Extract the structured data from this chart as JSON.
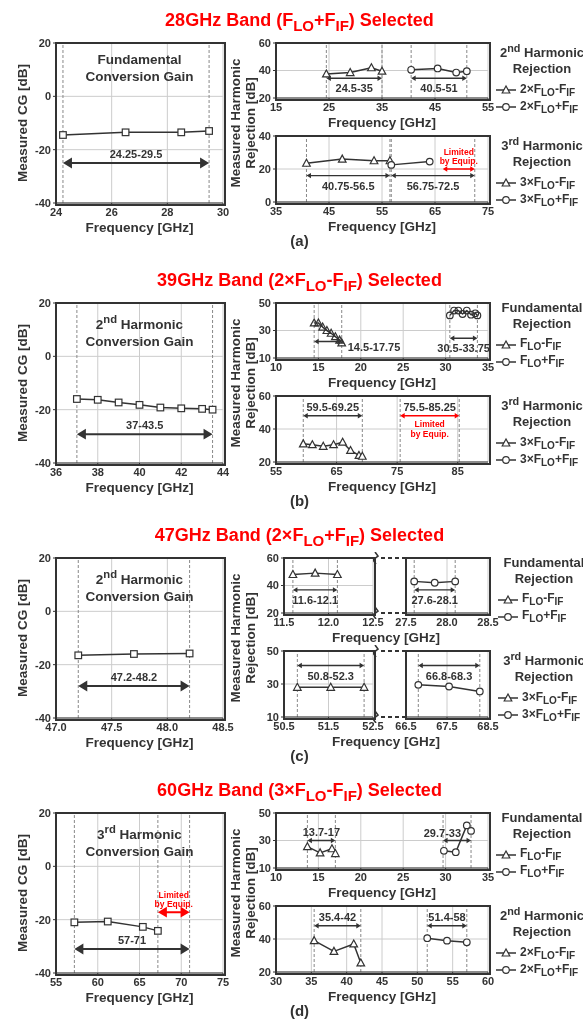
{
  "chart_data": [
    {
      "type": "line",
      "title": "28GHz Band (F$_{LO}$+F$_{IF}$) Selected",
      "xlabel": "Frequency [GHz]",
      "ylabel": "Measured CG [dB]",
      "xlim": [
        24,
        30
      ],
      "xticks": [
        24,
        26,
        28,
        30
      ],
      "ylim": [
        -40,
        20
      ],
      "yticks": [
        -40,
        -20,
        0,
        20
      ],
      "grid": true,
      "annotations": [
        "Fundamental Conversion Gain",
        "(a)",
        "24.25-29.5"
      ],
      "series": [
        {
          "x": [
            24.25,
            26.5,
            28.5,
            29.5
          ],
          "values": [
            -14.5,
            -13.5,
            -13.5,
            -13
          ],
          "color": "#333333",
          "marker": "square"
        }
      ],
      "ref_lines": [
        {
          "axis": "x",
          "value": 24.25,
          "line_style": "dashed",
          "color": "#888888"
        },
        {
          "axis": "x",
          "value": 29.5,
          "line_style": "dashed",
          "color": "#888888"
        }
      ]
    },
    {
      "type": "line",
      "xlabel": "Frequency [GHz]",
      "ylabel": "Measured Harmonic Rejection [dB]",
      "legend_title": "2$^{nd}$ Harmonic Rejection",
      "legend": "right",
      "xlim": [
        15,
        55
      ],
      "xticks": [
        15,
        25,
        35,
        45,
        55
      ],
      "ylim": [
        20,
        60
      ],
      "yticks": [
        20,
        40,
        60
      ],
      "grid": true,
      "annotations": [
        "24.5-35",
        "40.5-51"
      ],
      "series": [
        {
          "name": "2×F$_{LO}$-F$_{IF}$",
          "x": [
            24.5,
            29,
            33,
            35
          ],
          "values": [
            37.5,
            38.5,
            42,
            39.5
          ],
          "color": "#333333",
          "marker": "triangle"
        },
        {
          "name": "2×F$_{LO}$+F$_{IF}$",
          "x": [
            40.5,
            45.5,
            49,
            51
          ],
          "values": [
            40.5,
            41.5,
            38.5,
            39.5
          ],
          "color": "#333333",
          "marker": "circle"
        }
      ],
      "ref_lines": [
        {
          "axis": "x",
          "value": 24.5,
          "line_style": "dashed",
          "color": "#888888"
        },
        {
          "axis": "x",
          "value": 35,
          "line_style": "dashed",
          "color": "#888888"
        },
        {
          "axis": "x",
          "value": 40.5,
          "line_style": "dashed",
          "color": "#888888"
        },
        {
          "axis": "x",
          "value": 51,
          "line_style": "dashed",
          "color": "#888888"
        }
      ]
    },
    {
      "type": "line",
      "xlabel": "Frequency [GHz]",
      "legend_title": "3$^{rd}$ Harmonic Rejection",
      "legend": "right",
      "xlim": [
        35,
        75
      ],
      "xticks": [
        35,
        45,
        55,
        65,
        75
      ],
      "ylim": [
        0,
        40
      ],
      "yticks": [
        0,
        20,
        40
      ],
      "grid": true,
      "annotations": [
        "40.75-56.5",
        "56.75-72.5",
        {
          "text": "Limited by Equip.",
          "x": 72.5,
          "y": 20
        }
      ],
      "series": [
        {
          "name": "3×F$_{LO}$-F$_{IF}$",
          "x": [
            40.75,
            47.5,
            53.5,
            56.5
          ],
          "values": [
            23.5,
            26,
            25,
            25
          ],
          "color": "#333333",
          "marker": "triangle"
        },
        {
          "name": "3×F$_{LO}$+F$_{IF}$",
          "x": [
            56.75,
            64
          ],
          "values": [
            22.5,
            24.5
          ],
          "color": "#333333",
          "marker": "circle"
        }
      ],
      "ref_lines": [
        {
          "axis": "x",
          "value": 40.75,
          "line_style": "dashed",
          "color": "#888888"
        },
        {
          "axis": "x",
          "value": 56.5,
          "line_style": "dashed",
          "color": "#888888"
        },
        {
          "axis": "x",
          "value": 56.75,
          "line_style": "dashed",
          "color": "#888888"
        },
        {
          "axis": "x",
          "value": 72.5,
          "line_style": "dashed",
          "color": "#888888"
        }
      ]
    },
    {
      "type": "line",
      "title": "39GHz Band (2×F$_{LO}$-F$_{IF}$) Selected",
      "xlabel": "Frequency [GHz]",
      "ylabel": "Measured CG [dB]",
      "xlim": [
        36,
        44
      ],
      "xticks": [
        36,
        38,
        40,
        42,
        44
      ],
      "ylim": [
        -40,
        20
      ],
      "yticks": [
        -40,
        -20,
        0,
        20
      ],
      "grid": true,
      "annotations": [
        "2$^{nd}$ Harmonic Conversion Gain",
        "(b)",
        "37-43.5"
      ],
      "series": [
        {
          "x": [
            37,
            38,
            39,
            40,
            41,
            42,
            43,
            43.5
          ],
          "values": [
            -16,
            -16.3,
            -17.3,
            -18.2,
            -19.2,
            -19.5,
            -19.7,
            -20
          ],
          "color": "#333333",
          "marker": "square"
        }
      ],
      "ref_lines": [
        {
          "axis": "x",
          "value": 37,
          "line_style": "dashed",
          "color": "#888888"
        },
        {
          "axis": "x",
          "value": 43.5,
          "line_style": "dashed",
          "color": "#888888"
        }
      ]
    },
    {
      "type": "line",
      "xlabel": "Frequency [GHz]",
      "ylabel": "Measured Harmonic Rejection [dB]",
      "legend_title": "Fundamental Rejection",
      "legend": "right",
      "xlim": [
        10,
        35
      ],
      "xticks": [
        10,
        15,
        20,
        25,
        30,
        35
      ],
      "ylim": [
        10,
        50
      ],
      "yticks": [
        10,
        30,
        50
      ],
      "grid": true,
      "annotations": [
        "14.5-17.75",
        "30.5-33.75"
      ],
      "series": [
        {
          "name": "F$_{LO}$-F$_{IF}$",
          "x": [
            14.5,
            15,
            15.5,
            16,
            16.5,
            17,
            17.5,
            17.75
          ],
          "values": [
            35.5,
            35.5,
            32.5,
            30,
            28,
            25.5,
            23,
            21
          ],
          "color": "#333333",
          "marker": "triangle"
        },
        {
          "name": "F$_{LO}$+F$_{IF}$",
          "x": [
            30.5,
            31,
            31.5,
            32,
            32.5,
            33,
            33.5,
            33.75
          ],
          "values": [
            41,
            44.5,
            44.5,
            42,
            44.5,
            41.5,
            42.5,
            41
          ],
          "color": "#333333",
          "marker": "circle"
        }
      ],
      "ref_lines": [
        {
          "axis": "x",
          "value": 14.5,
          "line_style": "dashed",
          "color": "#888888"
        },
        {
          "axis": "x",
          "value": 17.75,
          "line_style": "dashed",
          "color": "#888888"
        },
        {
          "axis": "x",
          "value": 30.5,
          "line_style": "dashed",
          "color": "#888888"
        },
        {
          "axis": "x",
          "value": 33.75,
          "line_style": "dashed",
          "color": "#888888"
        }
      ]
    },
    {
      "type": "line",
      "xlabel": "Frequency [GHz]",
      "legend_title": "3$^{rd}$ Harmonic Rejection",
      "legend": "right",
      "xlim": [
        55,
        90
      ],
      "xticks": [
        55,
        65,
        75,
        85
      ],
      "ylim": [
        20,
        60
      ],
      "yticks": [
        20,
        40,
        60
      ],
      "grid": true,
      "annotations": [
        "59.5-69.25",
        "75.5-85.25",
        "Limited by Equip."
      ],
      "series": [
        {
          "name": "3×F$_{LO}$-F$_{IF}$",
          "x": [
            59.5,
            61,
            62.8,
            64.5,
            66,
            67.3,
            68.7,
            69.25
          ],
          "values": [
            31,
            30.5,
            29.5,
            30.5,
            32,
            27,
            24,
            23.5
          ],
          "color": "#333333",
          "marker": "triangle"
        },
        {
          "name": "3×F$_{LO}$+F$_{IF}$",
          "color": "#333333",
          "marker": "circle"
        }
      ],
      "ref_lines": [
        {
          "axis": "x",
          "value": 59.5,
          "line_style": "dashed",
          "color": "#888888"
        },
        {
          "axis": "x",
          "value": 69.25,
          "line_style": "dashed",
          "color": "#888888"
        },
        {
          "axis": "x",
          "value": 75.5,
          "line_style": "dashed",
          "color": "#888888"
        },
        {
          "axis": "x",
          "value": 85.25,
          "line_style": "dashed",
          "color": "#888888"
        }
      ]
    },
    {
      "type": "line",
      "title": "47GHz Band (2×F$_{LO}$+F$_{IF}$) Selected",
      "xlabel": "Frequency [GHz]",
      "ylabel": "Measured CG [dB]",
      "xlim": [
        47,
        48.5
      ],
      "xticks": [
        {
          "value": 47,
          "label": "47.0"
        },
        47.5,
        {
          "value": 48,
          "label": "48.0"
        },
        48.5
      ],
      "ylim": [
        -40,
        20
      ],
      "yticks": [
        -40,
        -20,
        0,
        20
      ],
      "grid": true,
      "annotations": [
        "2$^{nd}$ Harmonic Conversion Gain",
        "(c)",
        "47.2-48.2"
      ],
      "series": [
        {
          "x": [
            47.2,
            47.7,
            48.2
          ],
          "values": [
            -16.5,
            -16,
            -15.8
          ],
          "color": "#333333",
          "marker": "square"
        }
      ],
      "ref_lines": [
        {
          "axis": "x",
          "value": 47.2,
          "line_style": "dashed",
          "color": "#888888"
        },
        {
          "axis": "x",
          "value": 48.2,
          "line_style": "dashed",
          "color": "#888888"
        }
      ]
    },
    {
      "type": "line",
      "xlabel": "Frequency [GHz]",
      "ylabel": "Measured Harmonic Rejection [dB]",
      "xlim": [
        11.5,
        12.5
      ],
      "xticks": [
        11.5,
        {
          "value": 12,
          "label": "12.0"
        },
        12.5
      ],
      "ylim": [
        20,
        60
      ],
      "yticks": [
        20,
        40,
        60
      ],
      "grid": true,
      "annotations": [
        "11.6-12.1"
      ],
      "series": [
        {
          "name": "F$_{LO}$-F$_{IF}$",
          "x": [
            11.6,
            11.85,
            12.1
          ],
          "values": [
            48,
            49,
            48
          ],
          "color": "#333333",
          "marker": "triangle"
        }
      ],
      "ref_lines": [
        {
          "axis": "x",
          "value": 11.6,
          "line_style": "dashed",
          "color": "#888888"
        },
        {
          "axis": "x",
          "value": 12.1,
          "line_style": "dashed",
          "color": "#888888"
        }
      ]
    },
    {
      "type": "line",
      "legend_title": "Fundamental Rejection",
      "legend": "right",
      "tick_labels": "x",
      "xlim": [
        27.5,
        28.5
      ],
      "xticks": [
        27.5,
        {
          "value": 28,
          "label": "28.0"
        },
        28.5
      ],
      "ylim": [
        20,
        60
      ],
      "yticks": [
        20,
        40,
        60
      ],
      "grid": true,
      "annotations": [
        "27.6-28.1"
      ],
      "series": [
        {
          "name": "F$_{LO}$+F$_{IF}$",
          "x": [
            27.6,
            27.85,
            28.1
          ],
          "values": [
            43,
            42,
            43
          ],
          "color": "#333333",
          "marker": "circle"
        }
      ],
      "ref_lines": [
        {
          "axis": "x",
          "value": 27.6,
          "line_style": "dashed",
          "color": "#888888"
        },
        {
          "axis": "x",
          "value": 28.1,
          "line_style": "dashed",
          "color": "#888888"
        }
      ]
    },
    {
      "type": "line",
      "xlabel": "Frequency [GHz]",
      "xlim": [
        50.5,
        52.5
      ],
      "xticks": [
        50.5,
        51.5,
        52.5
      ],
      "ylim": [
        10,
        50
      ],
      "yticks": [
        10,
        30,
        50
      ],
      "grid": true,
      "annotations": [
        "50.8-52.3"
      ],
      "series": [
        {
          "name": "3×F$_{LO}$-F$_{IF}$",
          "x": [
            50.8,
            51.55,
            52.3
          ],
          "values": [
            28,
            28,
            28
          ],
          "color": "#333333",
          "marker": "triangle"
        }
      ],
      "ref_lines": [
        {
          "axis": "x",
          "value": 50.8,
          "line_style": "dashed",
          "color": "#888888"
        },
        {
          "axis": "x",
          "value": 52.3,
          "line_style": "dashed",
          "color": "#888888"
        }
      ]
    },
    {
      "type": "line",
      "legend_title": "3$^{rd}$ Harmonic Rejection",
      "legend": "right",
      "tick_labels": "x",
      "xlim": [
        66.5,
        68.5
      ],
      "xticks": [
        66.5,
        67.5,
        68.5
      ],
      "ylim": [
        10,
        50
      ],
      "yticks": [
        10,
        30,
        50
      ],
      "grid": true,
      "annotations": [
        "66.8-68.3"
      ],
      "series": [
        {
          "name": "3×F$_{LO}$+F$_{IF}$",
          "x": [
            66.8,
            67.55,
            68.3
          ],
          "values": [
            29.5,
            28.5,
            25.5
          ],
          "color": "#333333",
          "marker": "circle"
        }
      ],
      "ref_lines": [
        {
          "axis": "x",
          "value": 66.8,
          "line_style": "dashed",
          "color": "#888888"
        },
        {
          "axis": "x",
          "value": 68.3,
          "line_style": "dashed",
          "color": "#888888"
        }
      ]
    },
    {
      "type": "line",
      "title": "60GHz Band (3×F$_{LO}$-F$_{IF}$) Selected",
      "xlabel": "Frequency [GHz]",
      "ylabel": "Measured CG [dB]",
      "xlim": [
        55,
        75
      ],
      "xticks": [
        55,
        60,
        65,
        70,
        75
      ],
      "ylim": [
        -40,
        20
      ],
      "yticks": [
        -40,
        -20,
        0,
        20
      ],
      "grid": true,
      "annotations": [
        "3$^{rd}$ Harmonic Conversion Gain",
        "(d)",
        "57-71",
        "Limited by Equip."
      ],
      "series": [
        {
          "x": [
            57.2,
            61.2,
            65.4,
            67.2
          ],
          "values": [
            -21,
            -20.7,
            -22.7,
            -24.2
          ],
          "color": "#333333",
          "marker": "square"
        }
      ],
      "ref_lines": [
        {
          "axis": "x",
          "value": 57.2,
          "line_style": "dashed",
          "color": "#888888"
        },
        {
          "axis": "x",
          "value": 67.2,
          "line_style": "dashed",
          "color": "#888888"
        },
        {
          "axis": "x",
          "value": 71,
          "line_style": "dashed",
          "color": "#888888"
        }
      ]
    },
    {
      "type": "line",
      "xlabel": "Frequency [GHz]",
      "ylabel": "Measured Harmonic Rejection [dB]",
      "legend_title": "Fundamental Rejection",
      "legend": "right",
      "xlim": [
        10,
        35
      ],
      "xticks": [
        10,
        15,
        20,
        25,
        30,
        35
      ],
      "ylim": [
        10,
        50
      ],
      "yticks": [
        10,
        30,
        50
      ],
      "grid": true,
      "annotations": [
        "13.7-17",
        "29.7-33"
      ],
      "series": [
        {
          "name": "F$_{LO}$-F$_{IF}$",
          "x": [
            13.7,
            15.2,
            16.6,
            17
          ],
          "values": [
            25.5,
            21,
            24,
            20.5
          ],
          "color": "#333333",
          "marker": "triangle"
        },
        {
          "name": "F$_{LO}$+F$_{IF}$",
          "x": [
            29.8,
            31.2,
            32.5,
            33
          ],
          "values": [
            22.5,
            21.5,
            41,
            37
          ],
          "color": "#333333",
          "marker": "circle"
        }
      ],
      "ref_lines": [
        {
          "axis": "x",
          "value": 13.7,
          "line_style": "dashed",
          "color": "#888888"
        },
        {
          "axis": "x",
          "value": 17,
          "line_style": "dashed",
          "color": "#888888"
        },
        {
          "axis": "x",
          "value": 29.7,
          "line_style": "dashed",
          "color": "#888888"
        },
        {
          "axis": "x",
          "value": 33,
          "line_style": "dashed",
          "color": "#888888"
        }
      ]
    },
    {
      "type": "line",
      "xlabel": "Frequency [GHz]",
      "legend_title": "2$^{nd}$ Harmonic Rejection",
      "legend": "right",
      "xlim": [
        30,
        60
      ],
      "xticks": [
        30,
        35,
        40,
        45,
        50,
        55,
        60
      ],
      "ylim": [
        20,
        60
      ],
      "yticks": [
        20,
        40,
        60
      ],
      "grid": true,
      "annotations": [
        "35.4-42",
        "51.4-58"
      ],
      "series": [
        {
          "name": "2×F$_{LO}$-F$_{IF}$",
          "x": [
            35.4,
            38.2,
            41,
            42
          ],
          "values": [
            39,
            32.5,
            37,
            25.5
          ],
          "color": "#333333",
          "marker": "triangle"
        },
        {
          "name": "2×F$_{LO}$+F$_{IF}$",
          "x": [
            51.4,
            54.2,
            57
          ],
          "values": [
            40.5,
            39,
            38
          ],
          "color": "#333333",
          "marker": "circle"
        }
      ],
      "ref_lines": [
        {
          "axis": "x",
          "value": 35.4,
          "line_style": "dashed",
          "color": "#888888"
        },
        {
          "axis": "x",
          "value": 42,
          "line_style": "dashed",
          "color": "#888888"
        },
        {
          "axis": "x",
          "value": 51.4,
          "line_style": "dashed",
          "color": "#888888"
        },
        {
          "axis": "x",
          "value": 57,
          "line_style": "dashed",
          "color": "#888888"
        }
      ]
    }
  ]
}
